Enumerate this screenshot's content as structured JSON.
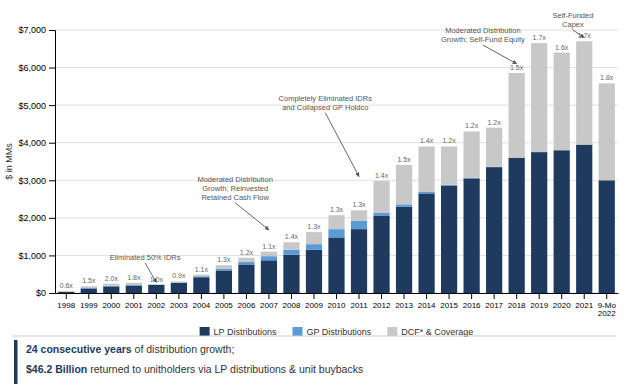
{
  "chart_data": {
    "type": "bar",
    "stacked": true,
    "grid": true,
    "ylabel": "$ in MMs",
    "categories": [
      "1998",
      "1999",
      "2000",
      "2001",
      "2002",
      "2003",
      "2004",
      "2005",
      "2006",
      "2007",
      "2008",
      "2009",
      "2010",
      "2011",
      "2012",
      "2013",
      "2014",
      "2015",
      "2016",
      "2017",
      "2018",
      "2019",
      "2020",
      "2021",
      "9-Mo\n2022"
    ],
    "series": [
      {
        "name": "LP Distributions",
        "color": "#1e3a5f",
        "values": [
          30,
          120,
          175,
          195,
          215,
          270,
          420,
          600,
          760,
          870,
          1020,
          1150,
          1480,
          1700,
          2050,
          2300,
          2650,
          2850,
          3050,
          3350,
          3600,
          3750,
          3800,
          3950,
          3000
        ]
      },
      {
        "name": "GP Distributions",
        "color": "#5b9bd5",
        "values": [
          4,
          12,
          18,
          18,
          8,
          12,
          25,
          45,
          70,
          110,
          130,
          150,
          220,
          220,
          80,
          60,
          40,
          30,
          20,
          10,
          5,
          0,
          0,
          0,
          0
        ]
      },
      {
        "name": "DCF* & Coverage",
        "color": "#c8c8c8",
        "values": [
          18,
          45,
          55,
          60,
          0,
          25,
          45,
          95,
          110,
          120,
          200,
          320,
          370,
          280,
          850,
          1050,
          1210,
          1020,
          1230,
          1040,
          2250,
          2900,
          2600,
          2750,
          2580
        ],
        "coverage_labels": [
          "0.6x",
          "1.5x",
          "2.0x",
          "1.8x",
          "1.0x",
          "0.9x",
          "1.1x",
          "1.3x",
          "1.2x",
          "1.1x",
          "1.4x",
          "1.3x",
          "1.3x",
          "1.3x",
          "1.4x",
          "1.5x",
          "1.4x",
          "1.2x",
          "1.2x",
          "1.2x",
          "1.5x",
          "1.7x",
          "1.6x",
          "1.7x",
          "1.8x"
        ]
      }
    ],
    "ylim": [
      0,
      7000
    ],
    "yticks": [
      {
        "value": 0,
        "label": "$0"
      },
      {
        "value": 1000,
        "label": "$1,000"
      },
      {
        "value": 2000,
        "label": "$2,000"
      },
      {
        "value": 3000,
        "label": "$3,000"
      },
      {
        "value": 4000,
        "label": "$4,000"
      },
      {
        "value": 5000,
        "label": "$5,000"
      },
      {
        "value": 6000,
        "label": "$6,000"
      },
      {
        "value": 7000,
        "label": "$7,000"
      }
    ],
    "annotations": [
      {
        "text": "Eliminated 50% IDRs",
        "x": 3.5,
        "y": 800,
        "arrow_x": 4.0,
        "arrow_y": 280
      },
      {
        "text": "Moderated Distribution\nGrowth; Reinvested\nRetained Cash Flow",
        "x": 7.5,
        "y": 2400,
        "arrow_x": 9.0,
        "arrow_y": 1680
      },
      {
        "text": "Completely Eliminated IDRs\nand Collapsed GP Holdco",
        "x": 11.5,
        "y": 4800,
        "arrow_x": 13.0,
        "arrow_y": 3100
      },
      {
        "text": "Moderated Distribution\nGrowth; Self-Fund Equity",
        "x": 18.5,
        "y": 6600,
        "arrow_x": 20.0,
        "arrow_y": 6100
      },
      {
        "text": "Self-Funded\nCapex",
        "x": 22.5,
        "y": 7000,
        "arrow_x": 23.0,
        "arrow_y": 6800
      }
    ],
    "footnotes": [
      {
        "emphasis": "24 consecutive years",
        "text": " of distribution growth;"
      },
      {
        "emphasis": "$46.2 Billion",
        "text": " returned to unitholders via LP distributions & unit buybacks"
      }
    ]
  }
}
